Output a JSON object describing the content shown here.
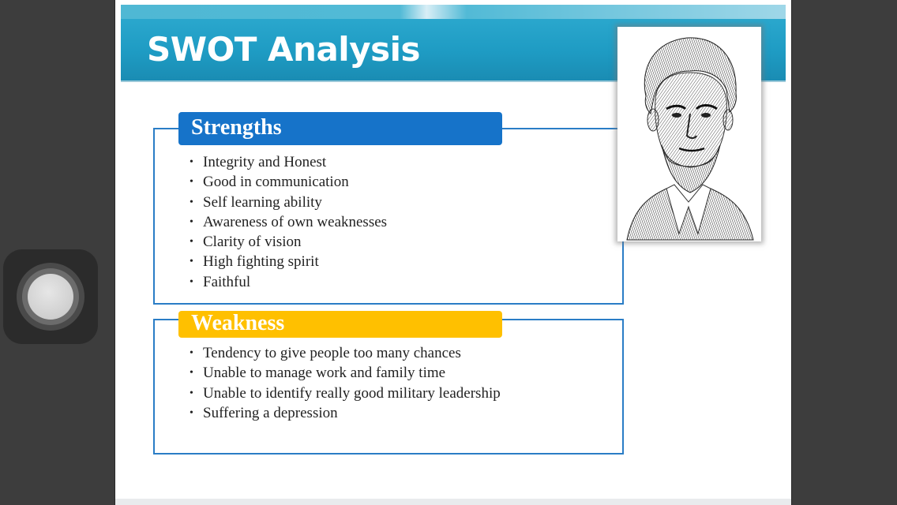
{
  "slide": {
    "title": "SWOT Analysis",
    "strengths": {
      "heading": "Strengths",
      "items": [
        "Integrity and Honest",
        "Good in communication",
        "Self learning ability",
        "Awareness of own weaknesses",
        "Clarity of vision",
        "High fighting spirit",
        "Faithful"
      ]
    },
    "weakness": {
      "heading": "Weakness",
      "items": [
        "Tendency to give people too many chances",
        "Unable to manage work and family time",
        "Unable to identify really good military leadership",
        "Suffering a depression"
      ]
    },
    "portrait": {
      "icon": "portrait-engraving"
    }
  },
  "colors": {
    "title_bar": "#1e9bc3",
    "strengths_accent": "#1673c9",
    "weakness_accent": "#ffc000",
    "box_border": "#2a7dc6"
  },
  "overlay": {
    "icon": "assistive-touch-icon"
  }
}
